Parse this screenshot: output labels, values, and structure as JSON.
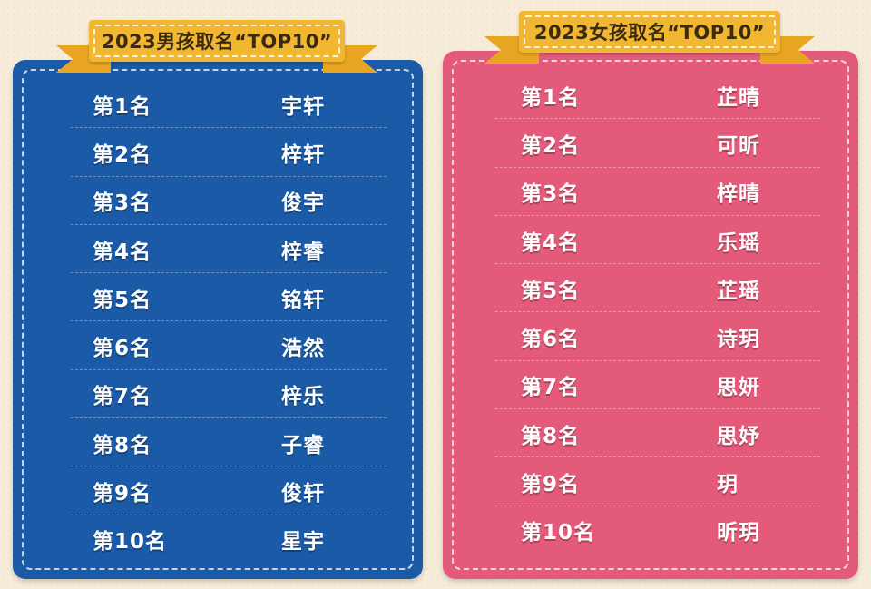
{
  "boys": {
    "title": "2023男孩取名“TOP10”",
    "rows": [
      {
        "rank": "第1名",
        "name": "宇轩"
      },
      {
        "rank": "第2名",
        "name": "梓轩"
      },
      {
        "rank": "第3名",
        "name": "俊宇"
      },
      {
        "rank": "第4名",
        "name": "梓睿"
      },
      {
        "rank": "第5名",
        "name": "铭轩"
      },
      {
        "rank": "第6名",
        "name": "浩然"
      },
      {
        "rank": "第7名",
        "name": "梓乐"
      },
      {
        "rank": "第8名",
        "name": "子睿"
      },
      {
        "rank": "第9名",
        "name": "俊轩"
      },
      {
        "rank": "第10名",
        "name": "星宇"
      }
    ],
    "color": "#1b5aa6"
  },
  "girls": {
    "title": "2023女孩取名“TOP10”",
    "rows": [
      {
        "rank": "第1名",
        "name": "芷晴"
      },
      {
        "rank": "第2名",
        "name": "可昕"
      },
      {
        "rank": "第3名",
        "name": "梓晴"
      },
      {
        "rank": "第4名",
        "name": "乐瑶"
      },
      {
        "rank": "第5名",
        "name": "芷瑶"
      },
      {
        "rank": "第6名",
        "name": "诗玥"
      },
      {
        "rank": "第7名",
        "name": "思妍"
      },
      {
        "rank": "第8名",
        "name": "思妤"
      },
      {
        "rank": "第9名",
        "name": "玥"
      },
      {
        "rank": "第10名",
        "name": "昕玥"
      }
    ],
    "color": "#e35a7a"
  },
  "ribbon_color": "#f2b731"
}
